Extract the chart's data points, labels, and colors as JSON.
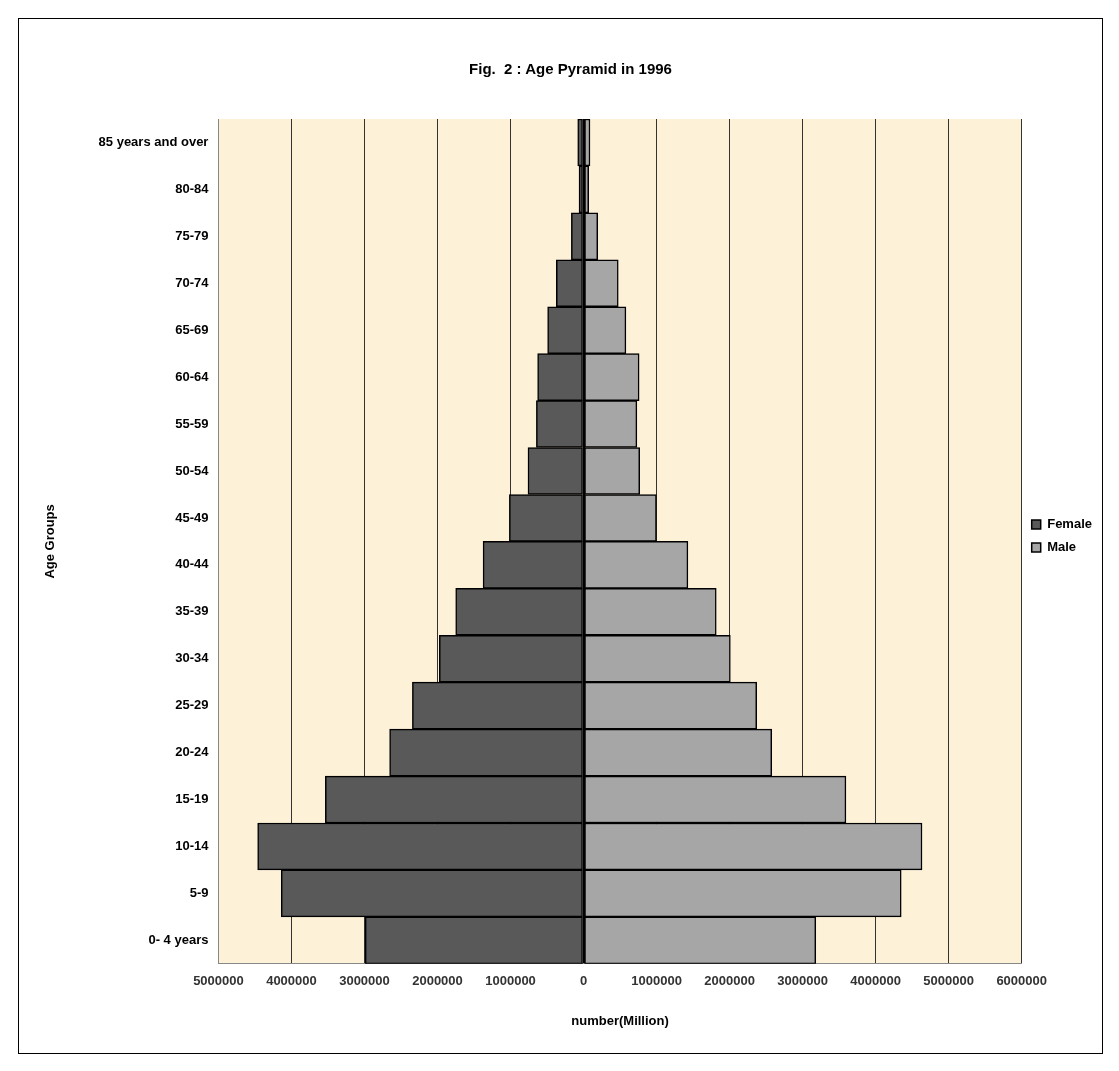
{
  "chart_data": {
    "type": "bar",
    "orientation": "horizontal",
    "stacked": true,
    "title": "Fig.  2 : Age Pyramid in 1996",
    "xlabel": "number(Million)",
    "ylabel": "Age Groups",
    "categories": [
      "85 years and over",
      "80-84",
      "75-79",
      "70-74",
      "65-69",
      "60-64",
      "55-59",
      "50-54",
      "45-49",
      "40-44",
      "35-39",
      "30-34",
      "25-29",
      "20-24",
      "15-19",
      "10-14",
      "5-9",
      "0- 4 years"
    ],
    "series": [
      {
        "name": "Female",
        "color": "#595959",
        "values": [
          -80000,
          -62000,
          -167000,
          -373000,
          -492000,
          -629000,
          -646000,
          -761000,
          -1016000,
          -1376000,
          -1751000,
          -1975000,
          -2344000,
          -2656000,
          -3536000,
          -4463000,
          -4140000,
          -2990000
        ]
      },
      {
        "name": "Male",
        "color": "#a6a6a6",
        "values": [
          88000,
          70000,
          194000,
          475000,
          580000,
          761000,
          730000,
          769000,
          998000,
          1429000,
          1817000,
          2010000,
          2371000,
          2577000,
          3593000,
          4635000,
          4350000,
          3180000
        ]
      }
    ],
    "xlim": [
      -5000000,
      6000000
    ],
    "xticks": [
      {
        "value": -5000000,
        "label": "5000000"
      },
      {
        "value": -4000000,
        "label": "4000000"
      },
      {
        "value": -3000000,
        "label": "3000000"
      },
      {
        "value": -2000000,
        "label": "2000000"
      },
      {
        "value": -1000000,
        "label": "1000000"
      },
      0,
      1000000,
      2000000,
      3000000,
      4000000,
      5000000,
      6000000
    ],
    "grid": "x",
    "legend": "right"
  }
}
